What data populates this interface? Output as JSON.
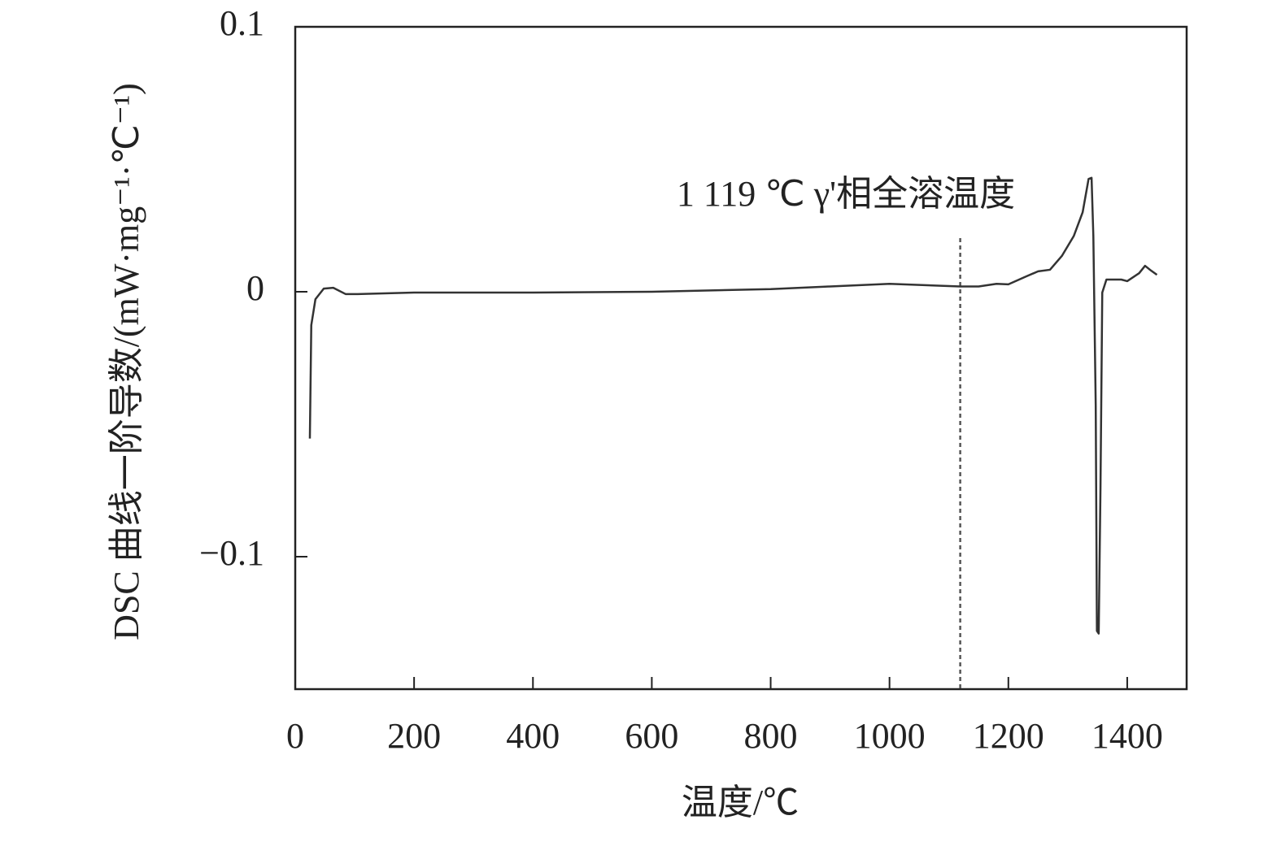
{
  "chart_data": {
    "type": "line",
    "x_label": "温度/℃",
    "y_label": "DSC 曲线一阶导数/(mW·mg⁻¹·℃⁻¹)",
    "xlim": [
      0,
      1500
    ],
    "xticks": [
      0,
      200,
      400,
      600,
      800,
      1000,
      1200,
      1400
    ],
    "ylim": [
      -0.15,
      0.1
    ],
    "yticks": [
      0.1,
      0,
      {
        "value": -0.1,
        "label": "−0.1"
      }
    ],
    "annotation": {
      "text": "1 119 ℃ γ'相全溶温度",
      "x": 1119
    },
    "series": [
      {
        "color": "#333333",
        "x": [
          24.6,
          27,
          34,
          48,
          64,
          85,
          105,
          200,
          400,
          600,
          800,
          900,
          1000,
          1119,
          1150,
          1180,
          1200,
          1230,
          1250,
          1270,
          1290,
          1310,
          1325,
          1335,
          1340,
          1343,
          1347,
          1349,
          1352,
          1355,
          1358,
          1365,
          1390,
          1400,
          1420,
          1430,
          1440,
          1450
        ],
        "values": [
          -0.0554,
          -0.0126,
          -0.0028,
          0.0012,
          0.0015,
          -0.0009,
          -0.0009,
          -0.0003,
          -0.0003,
          0,
          0.001,
          0.002,
          0.003,
          0.002,
          0.002,
          0.003,
          0.0028,
          0.0058,
          0.0077,
          0.0083,
          0.0135,
          0.021,
          0.03,
          0.0426,
          0.043,
          0.021,
          -0.043,
          -0.128,
          -0.129,
          -0.074,
          -0.0003,
          0.0046,
          0.0046,
          0.004,
          0.007,
          0.0098,
          0.008,
          0.0064
        ]
      }
    ]
  }
}
